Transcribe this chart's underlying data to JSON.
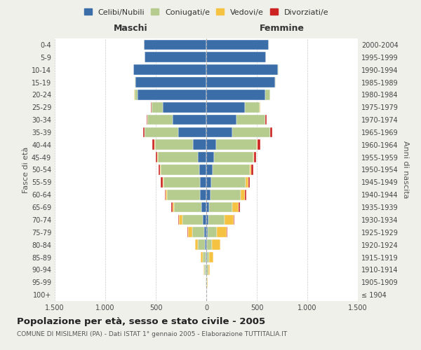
{
  "age_groups": [
    "100+",
    "95-99",
    "90-94",
    "85-89",
    "80-84",
    "75-79",
    "70-74",
    "65-69",
    "60-64",
    "55-59",
    "50-54",
    "45-49",
    "40-44",
    "35-39",
    "30-34",
    "25-29",
    "20-24",
    "15-19",
    "10-14",
    "5-9",
    "0-4"
  ],
  "birth_years": [
    "≤ 1904",
    "1905-1909",
    "1910-1914",
    "1915-1919",
    "1920-1924",
    "1925-1929",
    "1930-1934",
    "1935-1939",
    "1940-1944",
    "1945-1949",
    "1950-1954",
    "1955-1959",
    "1960-1964",
    "1965-1969",
    "1970-1974",
    "1975-1979",
    "1980-1984",
    "1985-1989",
    "1990-1994",
    "1995-1999",
    "2000-2004"
  ],
  "male": {
    "celibi": [
      0,
      2,
      5,
      8,
      15,
      20,
      35,
      50,
      60,
      65,
      70,
      80,
      130,
      280,
      330,
      430,
      680,
      700,
      720,
      610,
      620
    ],
    "coniugati": [
      2,
      5,
      15,
      30,
      65,
      120,
      200,
      270,
      330,
      360,
      380,
      400,
      380,
      330,
      250,
      110,
      30,
      5,
      2,
      0,
      0
    ],
    "vedovi": [
      0,
      2,
      5,
      15,
      30,
      40,
      35,
      15,
      10,
      8,
      5,
      3,
      2,
      2,
      2,
      2,
      2,
      0,
      0,
      0,
      0
    ],
    "divorziati": [
      0,
      0,
      0,
      0,
      2,
      5,
      8,
      10,
      12,
      15,
      15,
      20,
      25,
      15,
      10,
      5,
      2,
      0,
      0,
      0,
      0
    ]
  },
  "female": {
    "nubili": [
      0,
      2,
      3,
      5,
      8,
      12,
      20,
      28,
      40,
      50,
      60,
      75,
      100,
      260,
      300,
      380,
      580,
      680,
      710,
      590,
      620
    ],
    "coniugate": [
      2,
      5,
      15,
      25,
      50,
      90,
      160,
      230,
      300,
      340,
      370,
      390,
      400,
      370,
      280,
      150,
      50,
      10,
      2,
      0,
      0
    ],
    "vedove": [
      1,
      5,
      20,
      40,
      80,
      100,
      90,
      60,
      40,
      25,
      15,
      8,
      5,
      3,
      2,
      2,
      2,
      0,
      0,
      0,
      0
    ],
    "divorziate": [
      0,
      0,
      0,
      0,
      2,
      5,
      10,
      12,
      15,
      18,
      18,
      20,
      30,
      18,
      12,
      5,
      2,
      0,
      0,
      0,
      0
    ]
  },
  "colors": {
    "celibi": "#3B6EA8",
    "coniugati": "#B5CC8E",
    "vedovi": "#F5C242",
    "divorziati": "#CC2222"
  },
  "xlim": 1500,
  "title": "Popolazione per età, sesso e stato civile - 2005",
  "subtitle": "COMUNE DI MISILMERI (PA) - Dati ISTAT 1° gennaio 2005 - Elaborazione TUTTITALIA.IT",
  "ylabel_left": "Fasce di età",
  "ylabel_right": "Anni di nascita",
  "xlabel_left": "Maschi",
  "xlabel_right": "Femmine",
  "legend_labels": [
    "Celibi/Nubili",
    "Coniugati/e",
    "Vedovi/e",
    "Divorziati/e"
  ],
  "xtick_labels": [
    "1.500",
    "1.000",
    "500",
    "0",
    "500",
    "1.000",
    "1.500"
  ],
  "bg_color": "#f0f0eb",
  "plot_bg": "#ffffff"
}
